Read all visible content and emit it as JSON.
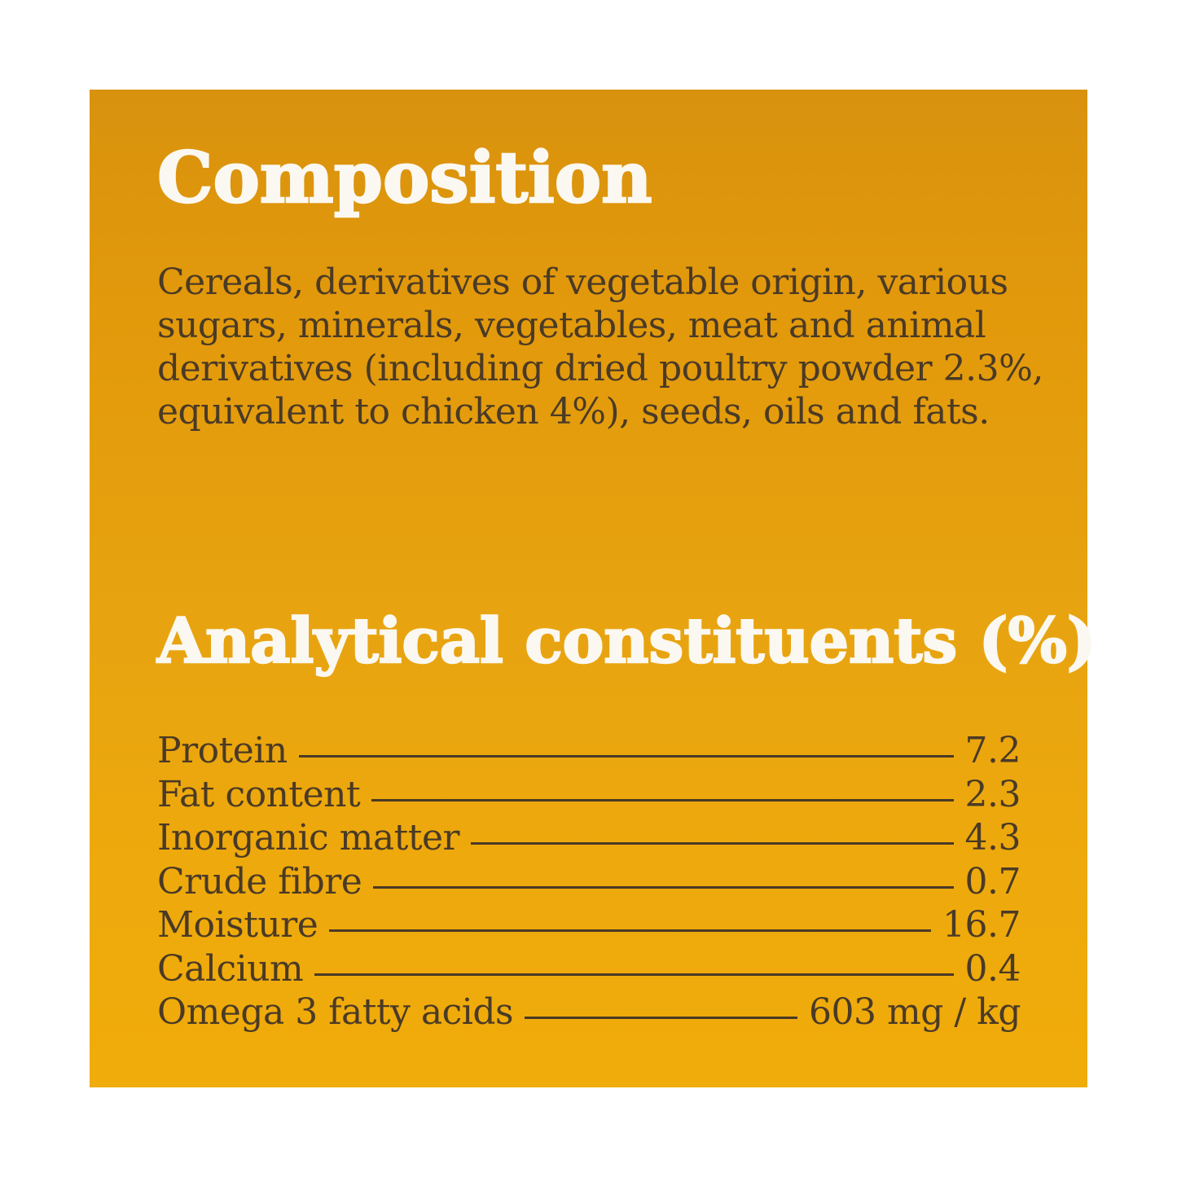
{
  "panel": {
    "background_top_color": "#D9920E",
    "background_bottom_color": "#F0AC0A",
    "heading_color": "#FBF8F1",
    "text_color": "#4A3A26"
  },
  "composition": {
    "title": "Composition",
    "body_lines": [
      "Cereals, derivatives of vegetable origin, various",
      "sugars, minerals, vegetables, meat and animal",
      "derivatives (including dried poultry powder 2.3%,",
      "equivalent to chicken 4%), seeds, oils and fats."
    ]
  },
  "analytical": {
    "title": "Analytical constituents (%)",
    "rows": [
      {
        "label": "Protein",
        "value": "7.2"
      },
      {
        "label": "Fat content",
        "value": "2.3"
      },
      {
        "label": "Inorganic matter",
        "value": "4.3"
      },
      {
        "label": "Crude fibre",
        "value": "0.7"
      },
      {
        "label": "Moisture",
        "value": "16.7"
      },
      {
        "label": "Calcium",
        "value": "0.4"
      },
      {
        "label": "Omega 3 fatty acids",
        "value": "603 mg / kg"
      }
    ]
  }
}
